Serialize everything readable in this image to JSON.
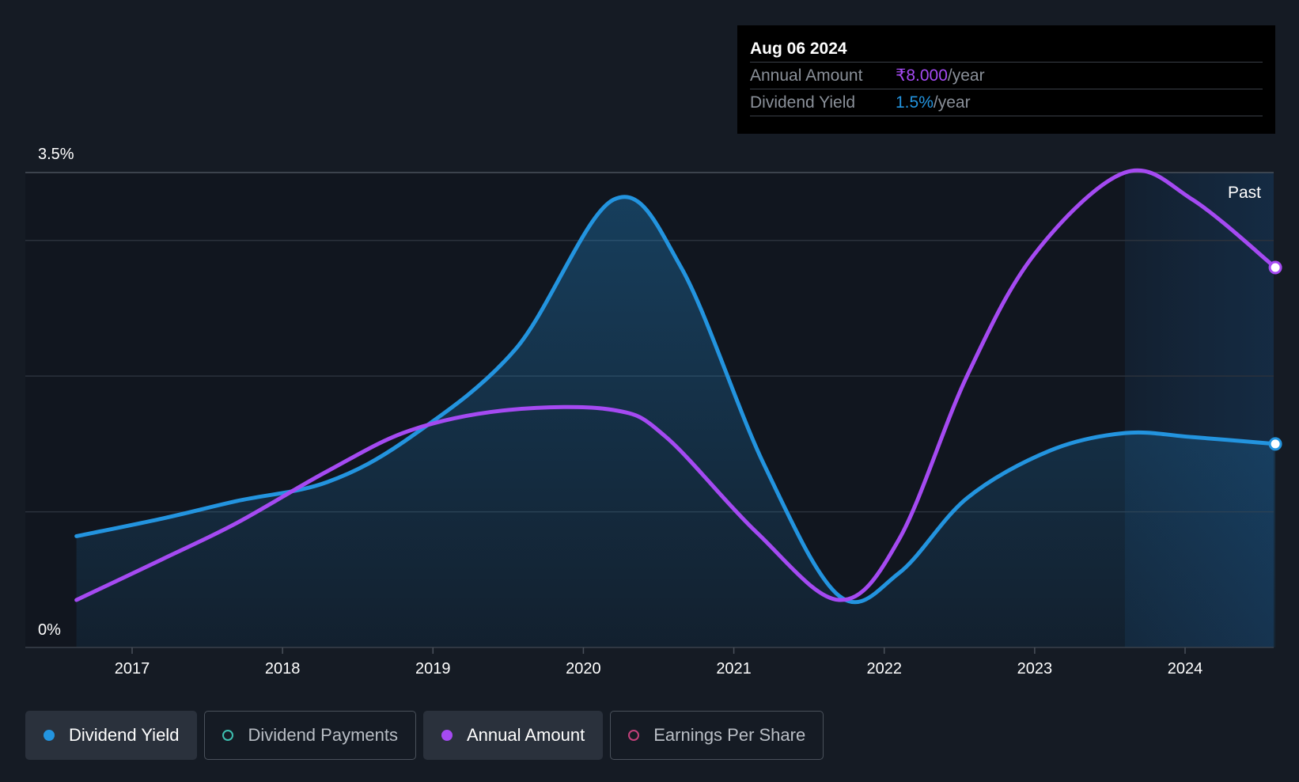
{
  "chart_data": {
    "type": "area",
    "ylim": [
      0,
      3.5
    ],
    "y_ticks": [
      "3.5%",
      "0%"
    ],
    "x_ticks": [
      "2017",
      "2018",
      "2019",
      "2020",
      "2021",
      "2022",
      "2023",
      "2024"
    ],
    "x_range": [
      2016.3,
      2024.6
    ],
    "past_region_start": 2023.6,
    "past_label": "Past",
    "series": [
      {
        "name": "Dividend Yield",
        "color": "#2394df",
        "filled": true,
        "points": [
          [
            2016.63,
            0.82
          ],
          [
            2017.2,
            0.95
          ],
          [
            2017.7,
            1.08
          ],
          [
            2018.3,
            1.22
          ],
          [
            2018.85,
            1.55
          ],
          [
            2019.55,
            2.2
          ],
          [
            2020.2,
            3.3
          ],
          [
            2020.65,
            2.8
          ],
          [
            2021.2,
            1.35
          ],
          [
            2021.7,
            0.38
          ],
          [
            2022.1,
            0.55
          ],
          [
            2022.55,
            1.1
          ],
          [
            2023.1,
            1.45
          ],
          [
            2023.6,
            1.58
          ],
          [
            2024.05,
            1.55
          ],
          [
            2024.6,
            1.5
          ]
        ]
      },
      {
        "name": "Annual Amount",
        "color": "#a54af2",
        "filled": false,
        "points": [
          [
            2016.63,
            0.35
          ],
          [
            2017.2,
            0.65
          ],
          [
            2017.7,
            0.92
          ],
          [
            2018.3,
            1.3
          ],
          [
            2018.85,
            1.6
          ],
          [
            2019.5,
            1.75
          ],
          [
            2020.2,
            1.75
          ],
          [
            2020.55,
            1.55
          ],
          [
            2021.15,
            0.85
          ],
          [
            2021.7,
            0.35
          ],
          [
            2022.1,
            0.8
          ],
          [
            2022.55,
            2.0
          ],
          [
            2023.0,
            2.9
          ],
          [
            2023.6,
            3.5
          ],
          [
            2024.05,
            3.3
          ],
          [
            2024.6,
            2.8
          ]
        ]
      }
    ],
    "tooltip": {
      "date": "Aug 06 2024",
      "rows": [
        {
          "label": "Annual Amount",
          "value": "₹8.000",
          "unit": "/year",
          "color": "#a54af2"
        },
        {
          "label": "Dividend Yield",
          "value": "1.5%",
          "unit": "/year",
          "color": "#2394df"
        }
      ]
    }
  },
  "legend": [
    {
      "label": "Dividend Yield",
      "color": "#2394df",
      "style": "filled"
    },
    {
      "label": "Dividend Payments",
      "color": "#3dbfb0",
      "style": "outline"
    },
    {
      "label": "Annual Amount",
      "color": "#a54af2",
      "style": "filled"
    },
    {
      "label": "Earnings Per Share",
      "color": "#c2407a",
      "style": "outline"
    }
  ]
}
